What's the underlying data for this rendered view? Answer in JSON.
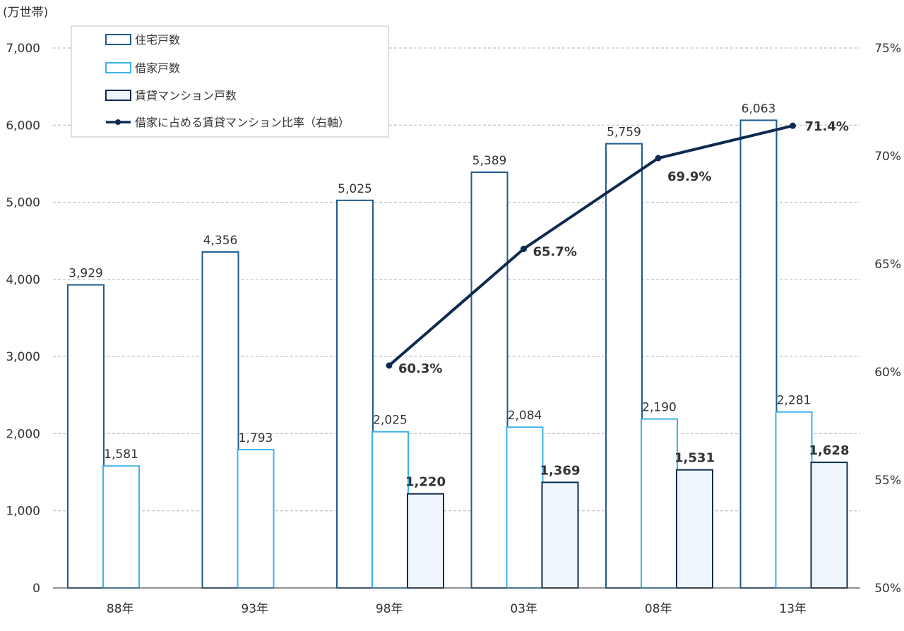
{
  "chart_data": {
    "type": "bar",
    "y_unit": "(万世帯)",
    "categories": [
      "88年",
      "93年",
      "98年",
      "03年",
      "08年",
      "13年"
    ],
    "y_ticks": [
      "0",
      "1,000",
      "2,000",
      "3,000",
      "4,000",
      "5,000",
      "6,000",
      "7,000"
    ],
    "y2_ticks": [
      "50%",
      "55%",
      "60%",
      "65%",
      "70%",
      "75%"
    ],
    "ylim": [
      0,
      7000
    ],
    "y2lim": [
      50,
      75
    ],
    "grid": true,
    "legend_position": "top-left",
    "series": [
      {
        "name": "住宅戸数",
        "type": "bar",
        "color": "#1f5b8e",
        "fill": "#ffffff",
        "values": [
          3929,
          4356,
          5025,
          5389,
          5759,
          6063
        ],
        "labels": [
          "3,929",
          "4,356",
          "5,025",
          "5,389",
          "5,759",
          "6,063"
        ]
      },
      {
        "name": "借家戸数",
        "type": "bar",
        "color": "#3db3ea",
        "fill": "#ffffff",
        "values": [
          1581,
          1793,
          2025,
          2084,
          2190,
          2281
        ],
        "labels": [
          "1,581",
          "1,793",
          "2,025",
          "2,084",
          "2,190",
          "2,281"
        ]
      },
      {
        "name": "賃貸マンション戸数",
        "type": "bar",
        "color": "#0d2a4f",
        "fill": "#eef5fc",
        "values": [
          null,
          null,
          1220,
          1369,
          1531,
          1628
        ],
        "labels": [
          "",
          "",
          "1,220",
          "1,369",
          "1,531",
          "1,628"
        ]
      },
      {
        "name": "借家に占める賃貸マンション比率（右軸）",
        "type": "line",
        "axis": "right",
        "color": "#0d2a4f",
        "values": [
          null,
          null,
          60.3,
          65.7,
          69.9,
          71.4
        ],
        "labels": [
          "",
          "",
          "60.3%",
          "65.7%",
          "69.9%",
          "71.4%"
        ]
      }
    ]
  }
}
